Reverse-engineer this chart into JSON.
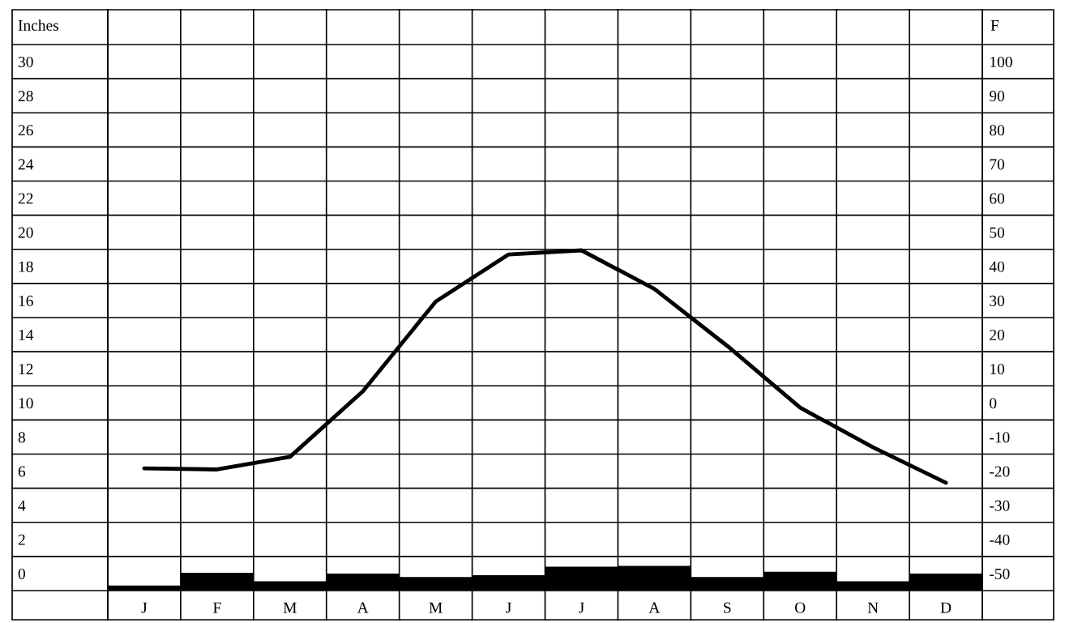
{
  "chart_data": {
    "type": "bar",
    "ylabel": "Inches",
    "y2label": "F",
    "categories": [
      "J",
      "F",
      "M",
      "A",
      "M",
      "J",
      "J",
      "A",
      "S",
      "O",
      "N",
      "D"
    ],
    "series": [
      {
        "color": "#000000",
        "values": [
          0.3,
          1.05,
          0.55,
          1.0,
          0.8,
          0.9,
          1.4,
          1.45,
          0.8,
          1.1,
          0.55,
          1.0
        ]
      },
      {
        "type": "line",
        "axis": "y2",
        "color": "#000000",
        "values": [
          -14.2,
          -14.5,
          -10.8,
          8.4,
          34.7,
          48.5,
          49.7,
          38.4,
          21.7,
          3.6,
          -8,
          -18.4
        ]
      }
    ],
    "ylim": [
      0,
      32
    ],
    "yticks": [
      0,
      2,
      4,
      6,
      8,
      10,
      12,
      14,
      16,
      18,
      20,
      22,
      24,
      26,
      28,
      30
    ],
    "y2lim": [
      -50,
      110
    ],
    "y2ticks": [
      -50,
      -40,
      -30,
      -20,
      -10,
      0,
      10,
      20,
      30,
      40,
      50,
      60,
      70,
      80,
      90,
      100
    ],
    "grid": true,
    "marker": "none",
    "line_style": "solid"
  }
}
